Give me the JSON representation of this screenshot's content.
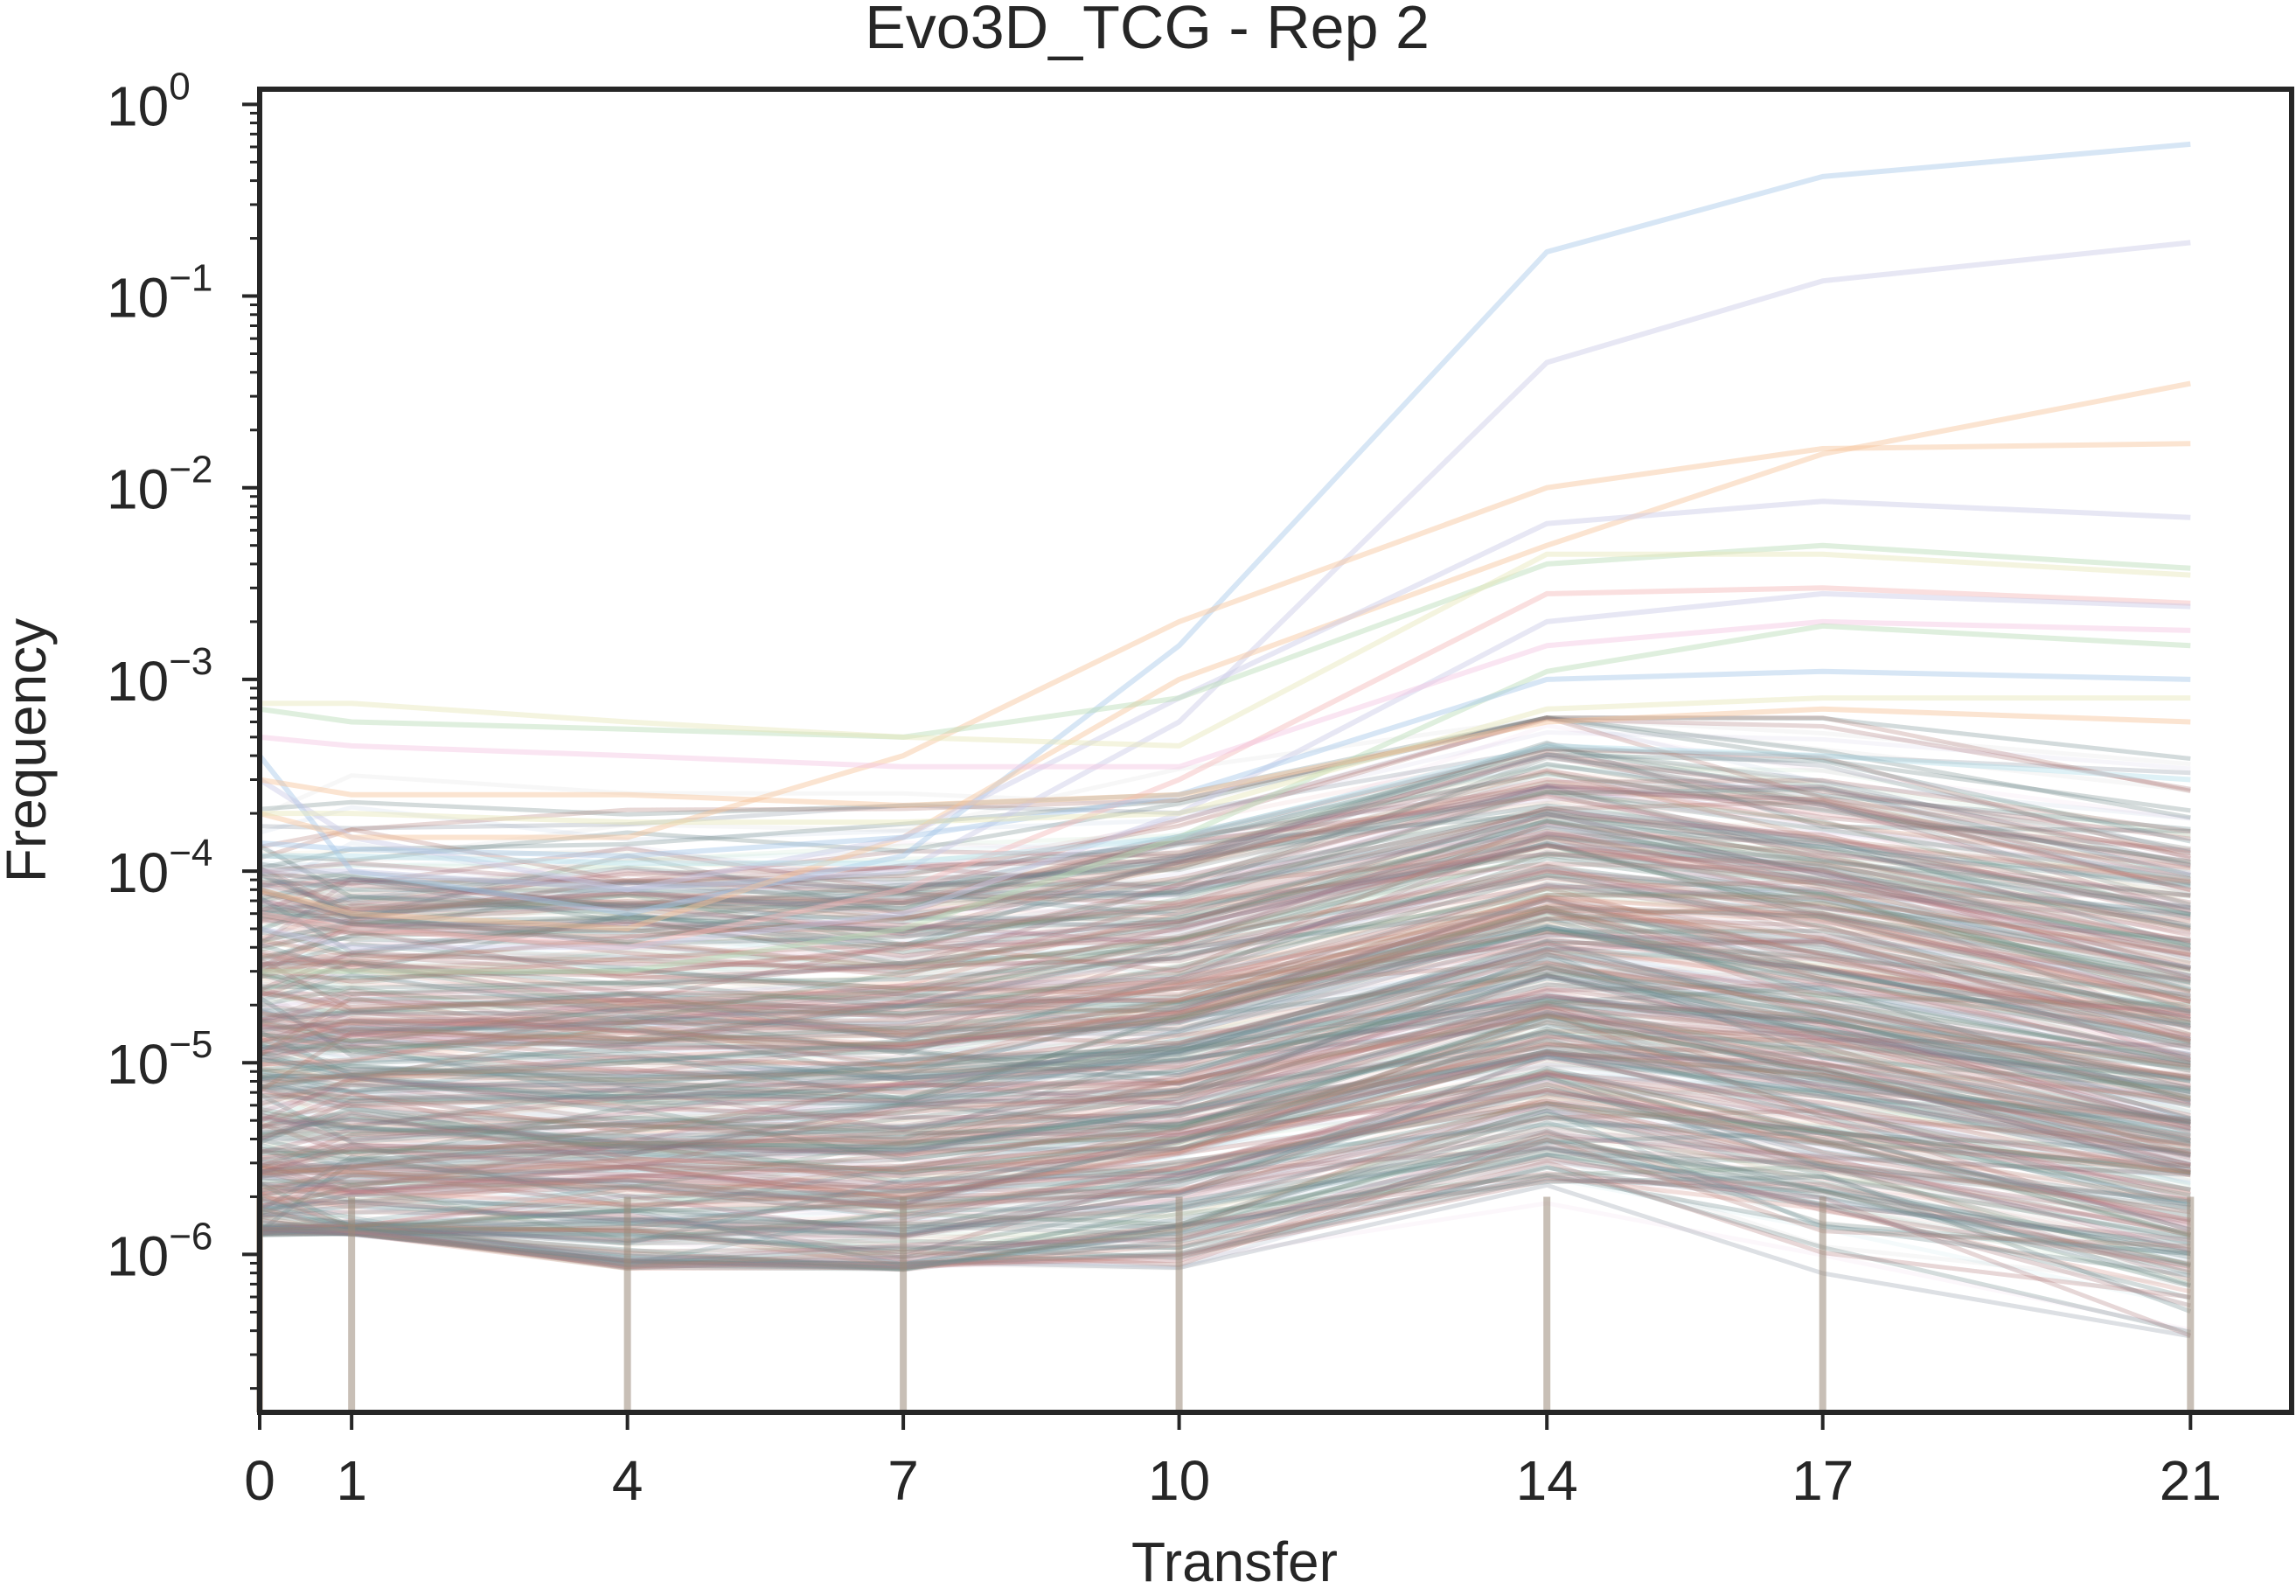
{
  "chart_data": {
    "type": "line",
    "title": "Evo3D_TCG - Rep 2",
    "xlabel": "Transfer",
    "ylabel": "Frequency",
    "x": [
      0,
      1,
      4,
      7,
      10,
      14,
      17,
      21
    ],
    "x_tick_labels": [
      "0",
      "1",
      "4",
      "7",
      "10",
      "14",
      "17",
      "21"
    ],
    "y_scale": "log",
    "ylim": [
      1.5e-07,
      1.2
    ],
    "y_ticks": [
      {
        "value": 1e-06,
        "base": "10",
        "exp": "−6"
      },
      {
        "value": 1e-05,
        "base": "10",
        "exp": "−5"
      },
      {
        "value": 0.0001,
        "base": "10",
        "exp": "−4"
      },
      {
        "value": 0.001,
        "base": "10",
        "exp": "−3"
      },
      {
        "value": 0.01,
        "base": "10",
        "exp": "−2"
      },
      {
        "value": 0.1,
        "base": "10",
        "exp": "−1"
      },
      {
        "value": 1,
        "base": "10",
        "exp": "0"
      }
    ],
    "grid": false,
    "legend": "none",
    "line_alpha": 0.12,
    "palette": [
      "#4c72b0",
      "#55a868",
      "#c44e52",
      "#8172b2",
      "#ccb974",
      "#64b5cd",
      "#dd8452",
      "#937860",
      "#da8bc3",
      "#8c8c8c"
    ],
    "series": [
      {
        "color": "#a6c8e8",
        "values": [
          0.0004,
          0.0001,
          6e-05,
          0.00012,
          0.0015,
          0.17,
          0.42,
          0.62
        ]
      },
      {
        "color": "#c9c9e6",
        "values": [
          0.0003,
          0.00015,
          8e-05,
          0.0001,
          0.0006,
          0.045,
          0.12,
          0.19
        ]
      },
      {
        "color": "#f6c49a",
        "values": [
          8e-05,
          6e-05,
          5e-05,
          0.00015,
          0.001,
          0.005,
          0.015,
          0.035
        ]
      },
      {
        "color": "#f6c49a",
        "values": [
          0.0002,
          0.00015,
          0.00015,
          0.0004,
          0.002,
          0.01,
          0.016,
          0.017
        ]
      },
      {
        "color": "#c9c9e6",
        "values": [
          0.0001,
          0.0001,
          8e-05,
          0.00015,
          0.0008,
          0.0065,
          0.0085,
          0.007
        ]
      },
      {
        "color": "#b9dcb5",
        "values": [
          0.0007,
          0.0006,
          0.00055,
          0.0005,
          0.0008,
          0.004,
          0.005,
          0.0038
        ]
      },
      {
        "color": "#e6e6b8",
        "values": [
          0.00075,
          0.00075,
          0.0006,
          0.0005,
          0.00045,
          0.0045,
          0.0045,
          0.0035
        ]
      },
      {
        "color": "#f3b8b8",
        "values": [
          6e-05,
          5e-05,
          4e-05,
          8e-05,
          0.0003,
          0.0028,
          0.003,
          0.0025
        ]
      },
      {
        "color": "#c9c9e6",
        "values": [
          5e-05,
          4e-05,
          4e-05,
          6e-05,
          0.0002,
          0.002,
          0.0028,
          0.0024
        ]
      },
      {
        "color": "#f3c6e3",
        "values": [
          0.0005,
          0.00045,
          0.0004,
          0.00035,
          0.00035,
          0.0015,
          0.002,
          0.0018
        ]
      },
      {
        "color": "#b9dcb5",
        "values": [
          3e-05,
          3e-05,
          3e-05,
          5e-05,
          0.00015,
          0.0011,
          0.0019,
          0.0015
        ]
      },
      {
        "color": "#a6c8e8",
        "values": [
          0.00014,
          0.00013,
          0.00012,
          0.00015,
          0.00025,
          0.001,
          0.0011,
          0.001
        ]
      },
      {
        "color": "#e6e6b8",
        "values": [
          0.0002,
          0.0002,
          0.00018,
          0.00018,
          0.0002,
          0.0007,
          0.0008,
          0.0008
        ]
      },
      {
        "color": "#f6c49a",
        "values": [
          0.0003,
          0.00025,
          0.00025,
          0.00022,
          0.00025,
          0.0006,
          0.0007,
          0.0006
        ]
      },
      {
        "color": "#b5e0ea",
        "values": [
          0.00012,
          0.00012,
          0.00011,
          0.00011,
          0.00015,
          0.00045,
          0.0004,
          0.0003
        ]
      }
    ]
  }
}
